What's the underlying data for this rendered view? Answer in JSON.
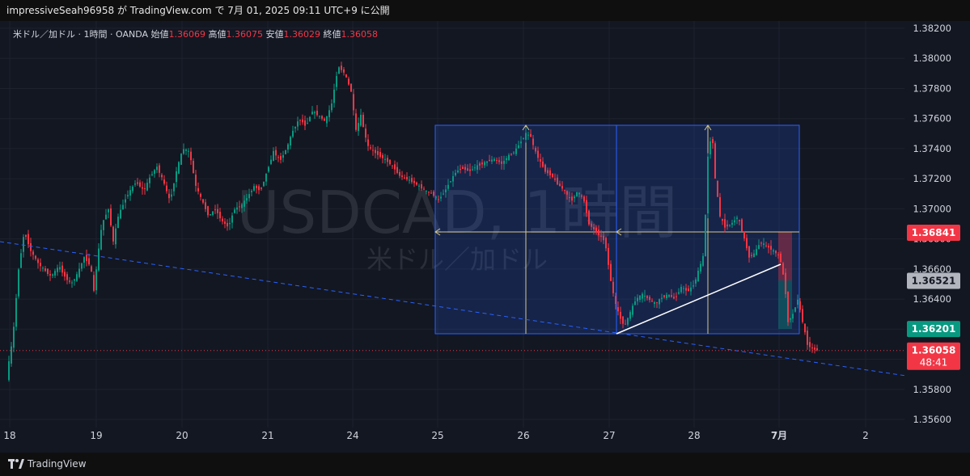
{
  "header": {
    "publish_line": "impressiveSeah96958 が TradingView.com で 7月 01, 2025 09:11 UTC+9 に公開"
  },
  "legend": {
    "symbol": "米ドル／加ドル · 1時間 · OANDA",
    "open_label": "始値",
    "open": "1.36069",
    "high_label": "高値",
    "high": "1.36075",
    "low_label": "安値",
    "low": "1.36029",
    "close_label": "終値",
    "close": "1.36058"
  },
  "watermark": {
    "title": "USDCAD, 1時間",
    "subtitle": "米ドル／加ドル"
  },
  "footer": {
    "brand": "TradingView"
  },
  "colors": {
    "up": "#089981",
    "down": "#f23645",
    "box": "#2962ff",
    "bg": "#131722"
  },
  "chart_data": {
    "type": "candlestick",
    "y_ticks": [
      "1.38200",
      "1.38000",
      "1.37800",
      "1.37600",
      "1.37400",
      "1.37200",
      "1.37000",
      "1.36800",
      "1.36600",
      "1.36400",
      "1.36200",
      "1.35800",
      "1.35600"
    ],
    "ylim": [
      1.3545,
      1.3829
    ],
    "x_ticks": [
      "18",
      "19",
      "20",
      "21",
      "24",
      "25",
      "26",
      "27",
      "28",
      "7月",
      "2"
    ],
    "price_labels": [
      {
        "text": "1.36841",
        "value": 1.36841,
        "style": "red"
      },
      {
        "text": "1.36521",
        "value": 1.36521,
        "style": "gray"
      },
      {
        "text": "1.36201",
        "value": 1.36201,
        "style": "green"
      },
      {
        "text": "1.36058",
        "value": 1.36058,
        "style": "red"
      }
    ],
    "countdown": "48:41",
    "path": [
      [
        0,
        1.3588
      ],
      [
        8,
        1.3615
      ],
      [
        15,
        1.366
      ],
      [
        22,
        1.3685
      ],
      [
        30,
        1.3672
      ],
      [
        40,
        1.3663
      ],
      [
        55,
        1.3655
      ],
      [
        65,
        1.3662
      ],
      [
        72,
        1.3655
      ],
      [
        80,
        1.365
      ],
      [
        88,
        1.3657
      ],
      [
        96,
        1.3668
      ],
      [
        104,
        1.3662
      ],
      [
        108,
        1.3645
      ],
      [
        112,
        1.3665
      ],
      [
        118,
        1.369
      ],
      [
        126,
        1.37
      ],
      [
        132,
        1.3678
      ],
      [
        138,
        1.3695
      ],
      [
        148,
        1.3708
      ],
      [
        160,
        1.3718
      ],
      [
        170,
        1.3712
      ],
      [
        178,
        1.3722
      ],
      [
        186,
        1.3728
      ],
      [
        194,
        1.3718
      ],
      [
        202,
        1.3705
      ],
      [
        210,
        1.3725
      ],
      [
        218,
        1.374
      ],
      [
        226,
        1.3738
      ],
      [
        234,
        1.3715
      ],
      [
        242,
        1.3705
      ],
      [
        250,
        1.3695
      ],
      [
        258,
        1.37
      ],
      [
        266,
        1.3692
      ],
      [
        274,
        1.3688
      ],
      [
        282,
        1.37
      ],
      [
        290,
        1.3702
      ],
      [
        298,
        1.3708
      ],
      [
        306,
        1.3715
      ],
      [
        314,
        1.3712
      ],
      [
        322,
        1.3725
      ],
      [
        330,
        1.3738
      ],
      [
        338,
        1.3732
      ],
      [
        346,
        1.374
      ],
      [
        354,
        1.3752
      ],
      [
        362,
        1.376
      ],
      [
        370,
        1.3755
      ],
      [
        378,
        1.3765
      ],
      [
        386,
        1.3762
      ],
      [
        394,
        1.3758
      ],
      [
        402,
        1.377
      ],
      [
        410,
        1.3795
      ],
      [
        418,
        1.379
      ],
      [
        426,
        1.3778
      ],
      [
        432,
        1.3752
      ],
      [
        438,
        1.3762
      ],
      [
        446,
        1.3742
      ],
      [
        454,
        1.3738
      ],
      [
        462,
        1.3735
      ],
      [
        470,
        1.3732
      ],
      [
        478,
        1.3728
      ],
      [
        486,
        1.3722
      ],
      [
        494,
        1.372
      ],
      [
        502,
        1.3718
      ],
      [
        510,
        1.3715
      ],
      [
        518,
        1.3712
      ],
      [
        526,
        1.371
      ],
      [
        534,
        1.3706
      ],
      [
        542,
        1.3712
      ],
      [
        548,
        1.3718
      ],
      [
        556,
        1.3725
      ],
      [
        564,
        1.3727
      ],
      [
        572,
        1.3725
      ],
      [
        580,
        1.3728
      ],
      [
        588,
        1.373
      ],
      [
        596,
        1.3732
      ],
      [
        604,
        1.3733
      ],
      [
        612,
        1.373
      ],
      [
        620,
        1.3735
      ],
      [
        628,
        1.3738
      ],
      [
        636,
        1.3745
      ],
      [
        642,
        1.375
      ],
      [
        648,
        1.3748
      ],
      [
        652,
        1.374
      ],
      [
        658,
        1.3733
      ],
      [
        666,
        1.3725
      ],
      [
        674,
        1.3722
      ],
      [
        682,
        1.3716
      ],
      [
        690,
        1.3712
      ],
      [
        698,
        1.3705
      ],
      [
        706,
        1.3712
      ],
      [
        714,
        1.3705
      ],
      [
        720,
        1.369
      ],
      [
        728,
        1.3685
      ],
      [
        734,
        1.3682
      ],
      [
        740,
        1.3678
      ],
      [
        746,
        1.3655
      ],
      [
        752,
        1.3638
      ],
      [
        758,
        1.3628
      ],
      [
        764,
        1.3622
      ],
      [
        770,
        1.363
      ],
      [
        778,
        1.364
      ],
      [
        786,
        1.3643
      ],
      [
        794,
        1.364
      ],
      [
        802,
        1.3637
      ],
      [
        810,
        1.3641
      ],
      [
        818,
        1.3643
      ],
      [
        826,
        1.364
      ],
      [
        834,
        1.3648
      ],
      [
        842,
        1.3645
      ],
      [
        850,
        1.365
      ],
      [
        856,
        1.366
      ],
      [
        862,
        1.367
      ],
      [
        867,
        1.3735
      ],
      [
        872,
        1.3752
      ],
      [
        876,
        1.372
      ],
      [
        882,
        1.3695
      ],
      [
        888,
        1.3688
      ],
      [
        896,
        1.369
      ],
      [
        904,
        1.3695
      ],
      [
        912,
        1.368
      ],
      [
        918,
        1.3668
      ],
      [
        924,
        1.367
      ],
      [
        932,
        1.3678
      ],
      [
        940,
        1.3675
      ],
      [
        948,
        1.3672
      ],
      [
        956,
        1.3668
      ],
      [
        962,
        1.365
      ],
      [
        966,
        1.3625
      ],
      [
        972,
        1.363
      ],
      [
        978,
        1.364
      ],
      [
        984,
        1.3625
      ],
      [
        990,
        1.361
      ],
      [
        996,
        1.3607
      ],
      [
        1004,
        1.3606
      ]
    ]
  }
}
